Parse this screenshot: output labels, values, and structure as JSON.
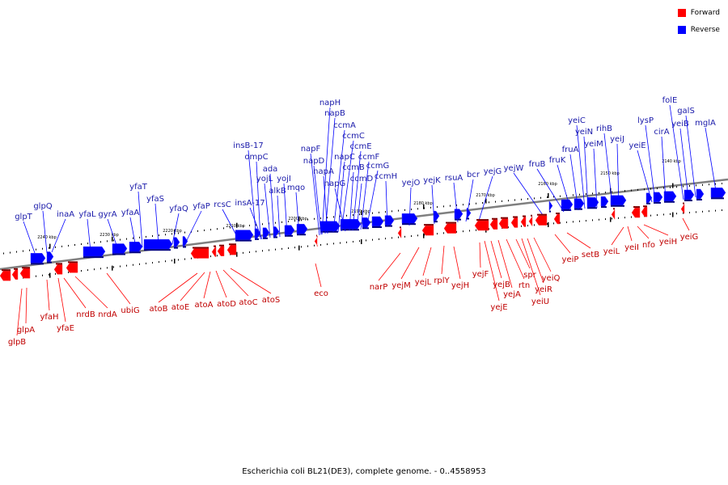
{
  "caption": "Escherichia coli BL21(DE3), complete genome. - 0..4558953",
  "legend": [
    {
      "label": "Forward",
      "color": "#ff0000"
    },
    {
      "label": "Reverse",
      "color": "#0000ff"
    }
  ],
  "colors": {
    "forward": "#ff0000",
    "forward_label": "#c00000",
    "reverse": "#0000ff",
    "reverse_label": "#1a1aaa",
    "backbone": "#7f7f7f"
  },
  "kbp_markers": [
    "2240 kbp",
    "2230 kbp",
    "2220 kbp",
    "2210 kbp",
    "2200 kbp",
    "2190 kbp",
    "2180 kbp",
    "2170 kbp",
    "2160 kbp",
    "2150 kbp",
    "2140 kbp"
  ],
  "reverse_genes": [
    "glpT",
    "glpQ",
    "inaA",
    "yfaL",
    "gyrA",
    "yfaA",
    "yfaT",
    "yfaS",
    "yfaQ",
    "yfaP",
    "rcsC",
    "insB-17",
    "ompC",
    "insA-17",
    "yojL",
    "ada",
    "alkB",
    "yojI",
    "mqo",
    "napF",
    "napD",
    "napH",
    "napB",
    "napA",
    "ccmA",
    "napC",
    "ccmC",
    "napG",
    "ccmB",
    "ccmE",
    "ccmD",
    "ccmF",
    "ccmG",
    "ccmH",
    "yejO",
    "yejK",
    "rsuA",
    "bcr",
    "yejG",
    "yejW",
    "fruB",
    "fruK",
    "fruA",
    "yeiC",
    "yeiN",
    "yeiM",
    "rihB",
    "yeiJ",
    "yeiE",
    "lysP",
    "cirA",
    "folE",
    "yeiB",
    "galS",
    "mglA"
  ],
  "forward_genes": [
    "glpB",
    "glpA",
    "yfaH",
    "yfaE",
    "nrdB",
    "nrdA",
    "ubiG",
    "atoB",
    "atoE",
    "atoA",
    "atoD",
    "atoC",
    "atoS",
    "eco",
    "narP",
    "yejM",
    "yejL",
    "rplY",
    "yejH",
    "yejF",
    "yejE",
    "yejB",
    "yejA",
    "rtn",
    "spr",
    "yeiU",
    "yeiR",
    "yeiQ",
    "yeiP",
    "setB",
    "yeiL",
    "yeiI",
    "nfo",
    "yeiH",
    "yeiG"
  ]
}
